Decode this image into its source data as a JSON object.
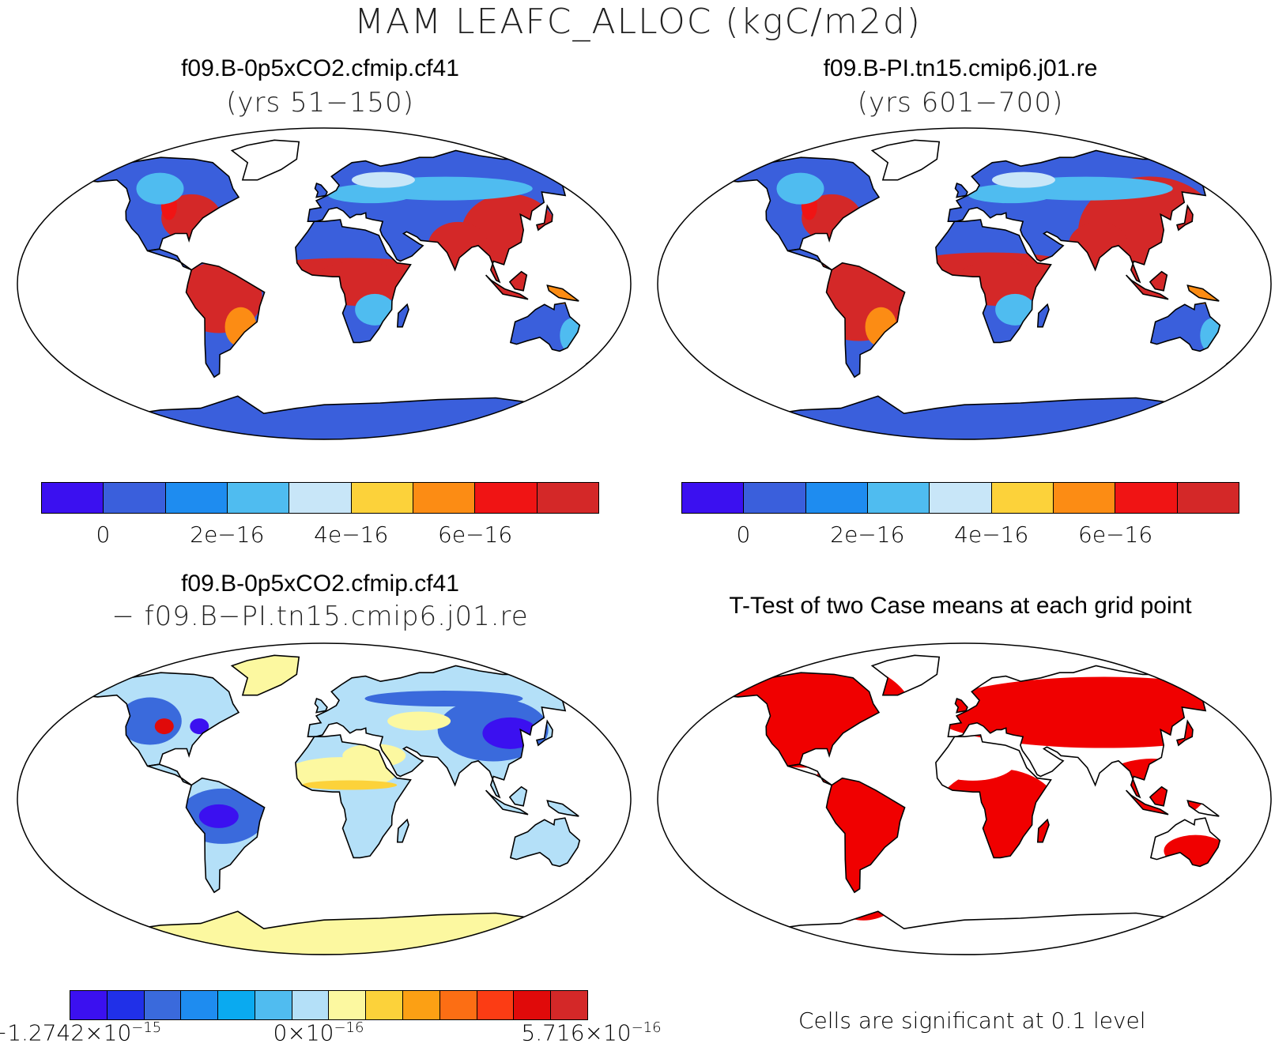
{
  "title": "MAM LEAFC_ALLOC (kgC/m2d)",
  "panels": {
    "case1": {
      "title": "f09.B-0p5xCO2.cfmip.cf41",
      "subtitle": "(yrs 51−150)"
    },
    "case2": {
      "title": "f09.B-PI.tn15.cmip6.j01.re",
      "subtitle": "(yrs 601−700)"
    },
    "diff": {
      "title": "f09.B-0p5xCO2.cfmip.cf41",
      "subtitle": "− f09.B−PI.tn15.cmip6.j01.re"
    },
    "ttest": {
      "title": "T-Test of two Case means at each grid point",
      "note": "Cells are significant at 0.1 level"
    }
  },
  "colorbars": {
    "case": {
      "colors": [
        "#3b10f0",
        "#3a5fdc",
        "#1e8cf0",
        "#4fbcf0",
        "#c8e6f8",
        "#fcd23a",
        "#fc8c14",
        "#f01414",
        "#d42828"
      ],
      "ticks": [
        "0",
        "2e−16",
        "4e−16",
        "6e−16"
      ]
    },
    "diff": {
      "colors": [
        "#3b10f0",
        "#2030e8",
        "#3a6adc",
        "#1e8cf0",
        "#0aaaf0",
        "#50bcf0",
        "#b4e0f8",
        "#fcf8a0",
        "#fcd23a",
        "#fca014",
        "#fc6e14",
        "#fc3c14",
        "#e00a0a",
        "#d42828"
      ],
      "ticks": [
        {
          "mant": "−1.2742×10",
          "exp": "−15"
        },
        {
          "mant": "0×10",
          "exp": "−16"
        },
        {
          "mant": "5.716×10",
          "exp": "−16"
        }
      ]
    }
  },
  "map_colors": {
    "ocean": "#ffffff",
    "outline": "#000000",
    "case_land": "#3a5fdc",
    "case_high": "#d42828",
    "case_mid": "#f01414",
    "case_orange": "#fc8c14",
    "case_light": "#4fbcf0",
    "case_pale": "#c8e6f8",
    "diff_land": "#b4e0f8",
    "diff_low": "#3a6adc",
    "diff_verylow": "#3b10f0",
    "diff_pos": "#fcf8a0",
    "diff_pos2": "#fcd23a",
    "diff_red": "#e00a0a",
    "ttest_sig": "#f00000"
  }
}
